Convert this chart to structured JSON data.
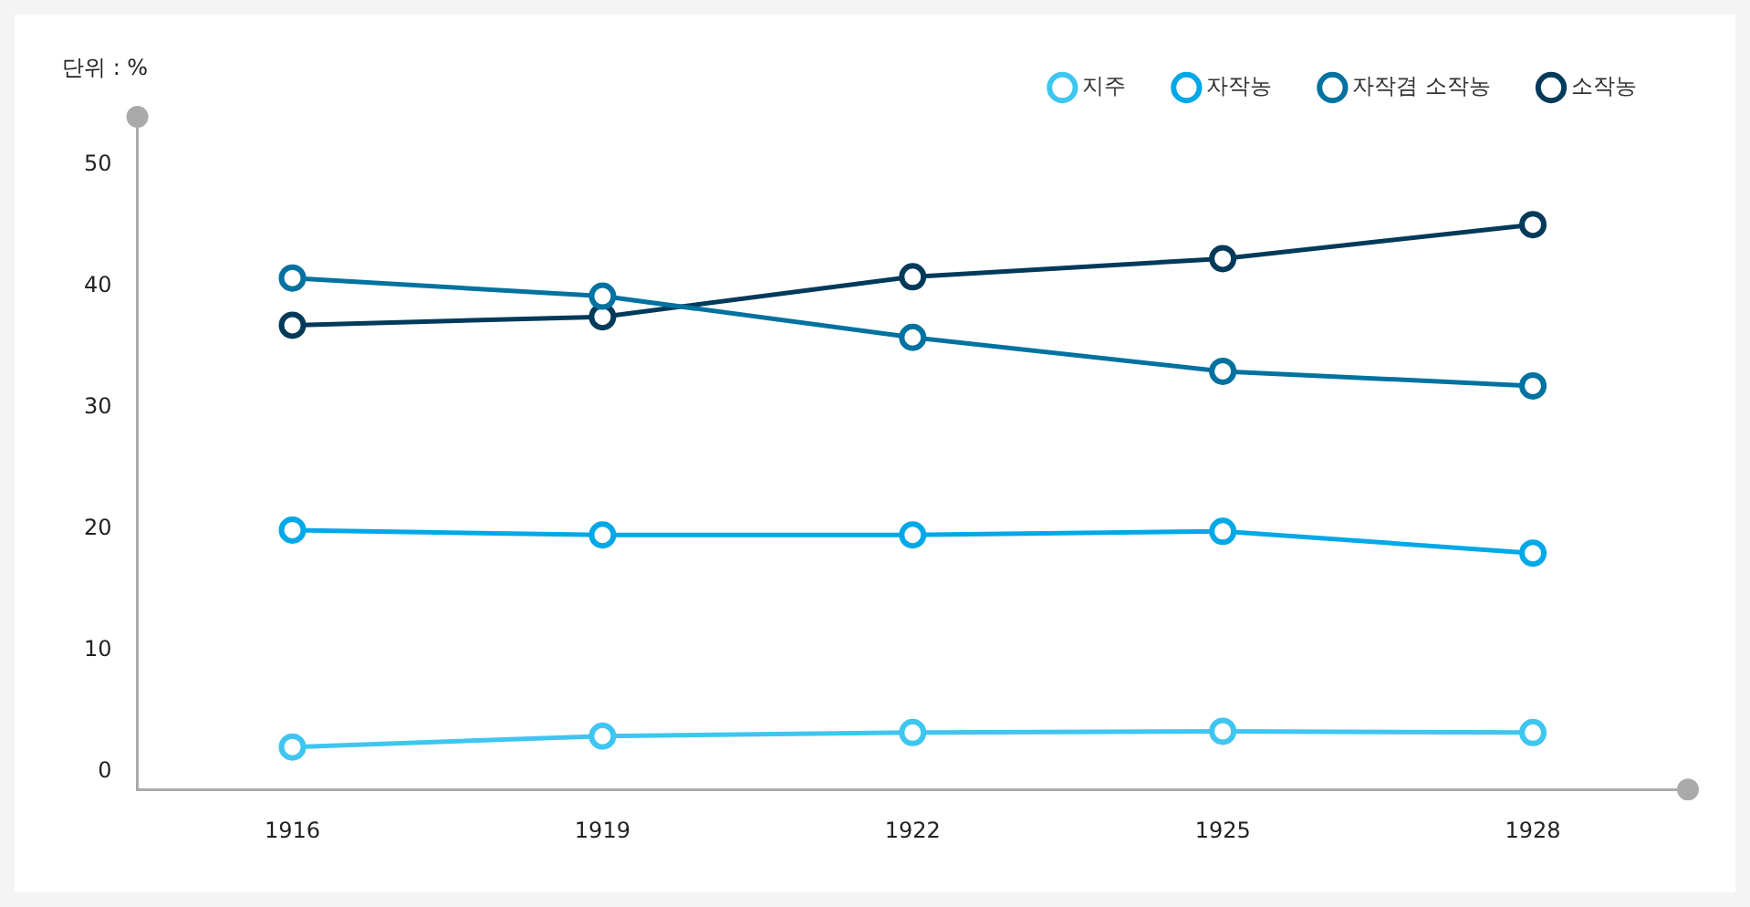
{
  "chart_data": {
    "type": "line",
    "ylabel": "단위 : %",
    "categories": [
      "1916",
      "1919",
      "1922",
      "1925",
      "1928"
    ],
    "series": [
      {
        "name": "지주",
        "color": "#3ec6f0",
        "values": [
          2.0,
          2.9,
          3.2,
          3.3,
          3.2
        ]
      },
      {
        "name": "자작농",
        "color": "#00a8e8",
        "values": [
          19.9,
          19.5,
          19.5,
          19.8,
          18.0
        ]
      },
      {
        "name": "자작겸 소작농",
        "color": "#0072a0",
        "values": [
          40.7,
          39.2,
          35.8,
          33.0,
          31.8
        ]
      },
      {
        "name": "소작농",
        "color": "#003a5a",
        "values": [
          36.8,
          37.5,
          40.8,
          42.3,
          45.1
        ]
      }
    ],
    "ylim": [
      -1.5,
      54
    ],
    "yticks": [
      0,
      10,
      20,
      30,
      40,
      50
    ],
    "grid": false,
    "legend": "top right",
    "marker": "circle",
    "line_style": "solid"
  }
}
